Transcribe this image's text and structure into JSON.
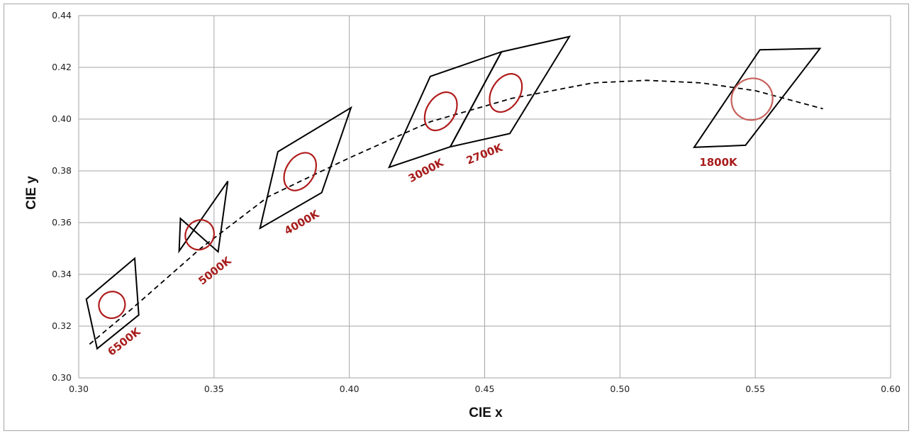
{
  "chart_data": {
    "type": "scatter",
    "xlabel": "CIE x",
    "ylabel": "CIE y",
    "xlim": [
      0.3,
      0.6
    ],
    "ylim": [
      0.3,
      0.44
    ],
    "x_ticks": [
      "0.30",
      "0.35",
      "0.40",
      "0.45",
      "0.50",
      "0.55",
      "0.60"
    ],
    "y_ticks": [
      "0.30",
      "0.32",
      "0.34",
      "0.36",
      "0.38",
      "0.40",
      "0.42",
      "0.44"
    ],
    "grid": true,
    "colors": {
      "quadrangle": "#000000",
      "ellipse": "#b01c1c",
      "ellipse_1800": "#c8605c",
      "label": "#a81c1c",
      "curve": "#000000"
    },
    "planckian_locus": [
      [
        0.304,
        0.313
      ],
      [
        0.32,
        0.327
      ],
      [
        0.345,
        0.35
      ],
      [
        0.37,
        0.37
      ],
      [
        0.4,
        0.385
      ],
      [
        0.43,
        0.399
      ],
      [
        0.46,
        0.408
      ],
      [
        0.49,
        0.414
      ],
      [
        0.51,
        0.415
      ],
      [
        0.53,
        0.414
      ],
      [
        0.55,
        0.411
      ],
      [
        0.575,
        0.404
      ]
    ],
    "series": [
      {
        "name": "6500K",
        "label": "6500K",
        "quad": [
          [
            0.3028,
            0.3304
          ],
          [
            0.3207,
            0.3462
          ],
          [
            0.3222,
            0.3243
          ],
          [
            0.3068,
            0.3113
          ]
        ],
        "ellipse": {
          "cx": 0.3123,
          "cy": 0.3282,
          "rx": 0.0048,
          "ry": 0.0052,
          "rot": 32
        }
      },
      {
        "name": "5000K",
        "label": "5000K",
        "quad": [
          [
            0.3371,
            0.349
          ],
          [
            0.3551,
            0.376
          ],
          [
            0.3515,
            0.3487
          ],
          [
            0.3376,
            0.3616
          ]
        ],
        "ellipse": {
          "cx": 0.3447,
          "cy": 0.3553,
          "rx": 0.0052,
          "ry": 0.0059,
          "rot": 32
        }
      },
      {
        "name": "4000K",
        "label": "4000K",
        "quad": [
          [
            0.367,
            0.3578
          ],
          [
            0.3898,
            0.3716
          ],
          [
            0.4006,
            0.4044
          ],
          [
            0.3736,
            0.3874
          ]
        ],
        "ellipse": {
          "cx": 0.3818,
          "cy": 0.3797,
          "rx": 0.0052,
          "ry": 0.0079,
          "rot": 32
        }
      },
      {
        "name": "3000K",
        "label": "3000K",
        "quad": [
          [
            0.4147,
            0.3814
          ],
          [
            0.4299,
            0.4165
          ],
          [
            0.4562,
            0.426
          ],
          [
            0.4373,
            0.3893
          ]
        ],
        "ellipse": {
          "cx": 0.4338,
          "cy": 0.403,
          "rx": 0.0052,
          "ry": 0.008,
          "rot": 32
        }
      },
      {
        "name": "2700K",
        "label": "2700K",
        "quad": [
          [
            0.4373,
            0.3893
          ],
          [
            0.4562,
            0.426
          ],
          [
            0.4813,
            0.4319
          ],
          [
            0.4593,
            0.3944
          ]
        ],
        "ellipse": {
          "cx": 0.4578,
          "cy": 0.4101,
          "rx": 0.0052,
          "ry": 0.008,
          "rot": 32
        }
      },
      {
        "name": "1800K",
        "label": "1800K",
        "quad": [
          [
            0.5274,
            0.3891
          ],
          [
            0.5517,
            0.4268
          ],
          [
            0.5739,
            0.4273
          ],
          [
            0.5464,
            0.3899
          ]
        ],
        "ellipse": {
          "cx": 0.5488,
          "cy": 0.4077,
          "rx": 0.0075,
          "ry": 0.0082,
          "rot": 38
        }
      }
    ]
  }
}
